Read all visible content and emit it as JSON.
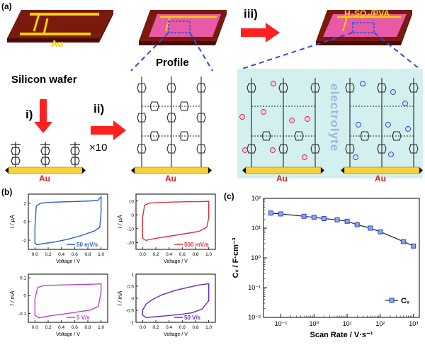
{
  "figure": {
    "panel_a": {
      "label": "(a)",
      "chip_electrode_label": "Au",
      "substrate_label": "Silicon wafer",
      "profile_label": "Profile",
      "step_i": "i)",
      "step_ii": "ii)",
      "step_ii_repeat": "×10",
      "step_iii": "iii)",
      "gel_label": "H₂SO₄/PVA",
      "electrolyte_label": "electrolyte",
      "bar_label": "Au"
    },
    "panel_b": {
      "label": "(b)",
      "colors": {
        "c1": "#2a5fd0",
        "c2": "#e0303a",
        "c3": "#c040d0",
        "c4": "#6a2cc0"
      }
    },
    "panel_c": {
      "label": "(c)",
      "ylabel": "Cᵥ / F·cm⁻³",
      "xlabel": "Scan Rate / V·s⁻¹",
      "legend": "Cᵥ",
      "color": "#2a46c8"
    }
  },
  "chart_data": [
    {
      "type": "line",
      "id": "cv1",
      "title": "",
      "xlabel": "Voltage / V",
      "ylabel": "I / µA",
      "xlim": [
        -0.1,
        1.1
      ],
      "ylim": [
        -3,
        3
      ],
      "xticks": [
        0.0,
        0.2,
        0.4,
        0.6,
        0.8,
        1.0
      ],
      "yticks": [
        -2,
        0,
        2
      ],
      "legend": "50 mV/s",
      "color": "#2a5fd0",
      "series": [
        {
          "name": "50 mV/s",
          "x": [
            0.0,
            0.02,
            0.08,
            0.2,
            0.4,
            0.6,
            0.8,
            0.95,
            1.0,
            1.0,
            0.98,
            0.9,
            0.7,
            0.5,
            0.3,
            0.1,
            0.03,
            0.0,
            0.0
          ],
          "y": [
            -0.6,
            1.7,
            2.0,
            2.1,
            2.15,
            2.2,
            2.25,
            2.3,
            2.7,
            1.0,
            -0.6,
            -1.0,
            -1.5,
            -1.9,
            -2.2,
            -2.4,
            -2.5,
            -2.3,
            -0.6
          ]
        }
      ]
    },
    {
      "type": "line",
      "id": "cv2",
      "title": "",
      "xlabel": "Voltage / V",
      "ylabel": "I / µA",
      "xlim": [
        -0.1,
        1.1
      ],
      "ylim": [
        -25,
        15
      ],
      "xticks": [
        0.0,
        0.2,
        0.4,
        0.6,
        0.8,
        1.0
      ],
      "yticks": [
        -20,
        -10,
        0,
        10
      ],
      "legend": "500 mV/s",
      "color": "#e0303a",
      "series": [
        {
          "name": "500 mV/s",
          "x": [
            0.0,
            0.03,
            0.1,
            0.3,
            0.5,
            0.7,
            0.9,
            1.0,
            1.0,
            0.97,
            0.85,
            0.6,
            0.4,
            0.2,
            0.05,
            0.0,
            0.0
          ],
          "y": [
            -2,
            7,
            8.5,
            9,
            9.3,
            9.5,
            9.6,
            9.8,
            -2,
            -9,
            -12,
            -14,
            -15.5,
            -17,
            -18.5,
            -17,
            -2
          ]
        }
      ]
    },
    {
      "type": "line",
      "id": "cv3",
      "title": "",
      "xlabel": "Voltage / V",
      "ylabel": "I / mA",
      "xlim": [
        -0.1,
        1.1
      ],
      "ylim": [
        -0.15,
        0.12
      ],
      "xticks": [
        0.0,
        0.2,
        0.4,
        0.6,
        0.8,
        1.0
      ],
      "yticks": [
        -0.1,
        0.0,
        0.1
      ],
      "legend": "5 V/s",
      "color": "#c040d0",
      "series": [
        {
          "name": "5 V/s",
          "x": [
            0.0,
            0.04,
            0.12,
            0.3,
            0.5,
            0.7,
            0.9,
            1.0,
            1.0,
            0.96,
            0.85,
            0.6,
            0.4,
            0.2,
            0.06,
            0.0,
            0.0
          ],
          "y": [
            -0.02,
            0.045,
            0.055,
            0.058,
            0.06,
            0.062,
            0.064,
            0.066,
            0.02,
            -0.06,
            -0.08,
            -0.095,
            -0.105,
            -0.115,
            -0.125,
            -0.11,
            -0.02
          ]
        }
      ]
    },
    {
      "type": "line",
      "id": "cv4",
      "title": "",
      "xlabel": "Voltage / V",
      "ylabel": "I / mA",
      "xlim": [
        -0.1,
        1.1
      ],
      "ylim": [
        -1.0,
        1.0
      ],
      "xticks": [
        0.0,
        0.2,
        0.4,
        0.6,
        0.8,
        1.0
      ],
      "yticks": [
        -1.0,
        -0.5,
        0.0,
        0.5,
        1.0
      ],
      "legend": "50 V/s",
      "color": "#6a2cc0",
      "series": [
        {
          "name": "50 V/s",
          "x": [
            0.0,
            0.05,
            0.15,
            0.3,
            0.5,
            0.7,
            0.85,
            1.0,
            1.0,
            0.9,
            0.75,
            0.55,
            0.35,
            0.15,
            0.05,
            0.0,
            0.0
          ],
          "y": [
            -0.5,
            -0.25,
            -0.05,
            0.15,
            0.33,
            0.46,
            0.55,
            0.6,
            -0.1,
            -0.45,
            -0.6,
            -0.68,
            -0.73,
            -0.78,
            -0.8,
            -0.7,
            -0.5
          ]
        }
      ]
    },
    {
      "type": "line",
      "id": "rate",
      "title": "",
      "xlabel": "Scan Rate / V·s⁻¹",
      "ylabel": "Cᵥ / F·cm⁻³",
      "xscale": "log",
      "yscale": "log",
      "xlim": [
        0.03,
        1500
      ],
      "ylim": [
        0.01,
        100
      ],
      "xticks": [
        "10⁻¹",
        "10⁰",
        "10¹",
        "10²",
        "10³"
      ],
      "yticks": [
        "10⁻²",
        "10⁻¹",
        "10⁰",
        "10¹",
        "10²"
      ],
      "legend": "Cᵥ",
      "legend_position": "bottom-right",
      "color": "#2a46c8",
      "series": [
        {
          "name": "Cᵥ",
          "x": [
            0.05,
            0.1,
            0.5,
            1,
            2,
            5,
            10,
            20,
            50,
            100,
            500,
            1000
          ],
          "y": [
            32,
            30,
            25,
            23,
            21,
            19,
            17,
            13,
            10,
            7.5,
            3.5,
            2.5
          ]
        }
      ]
    }
  ]
}
